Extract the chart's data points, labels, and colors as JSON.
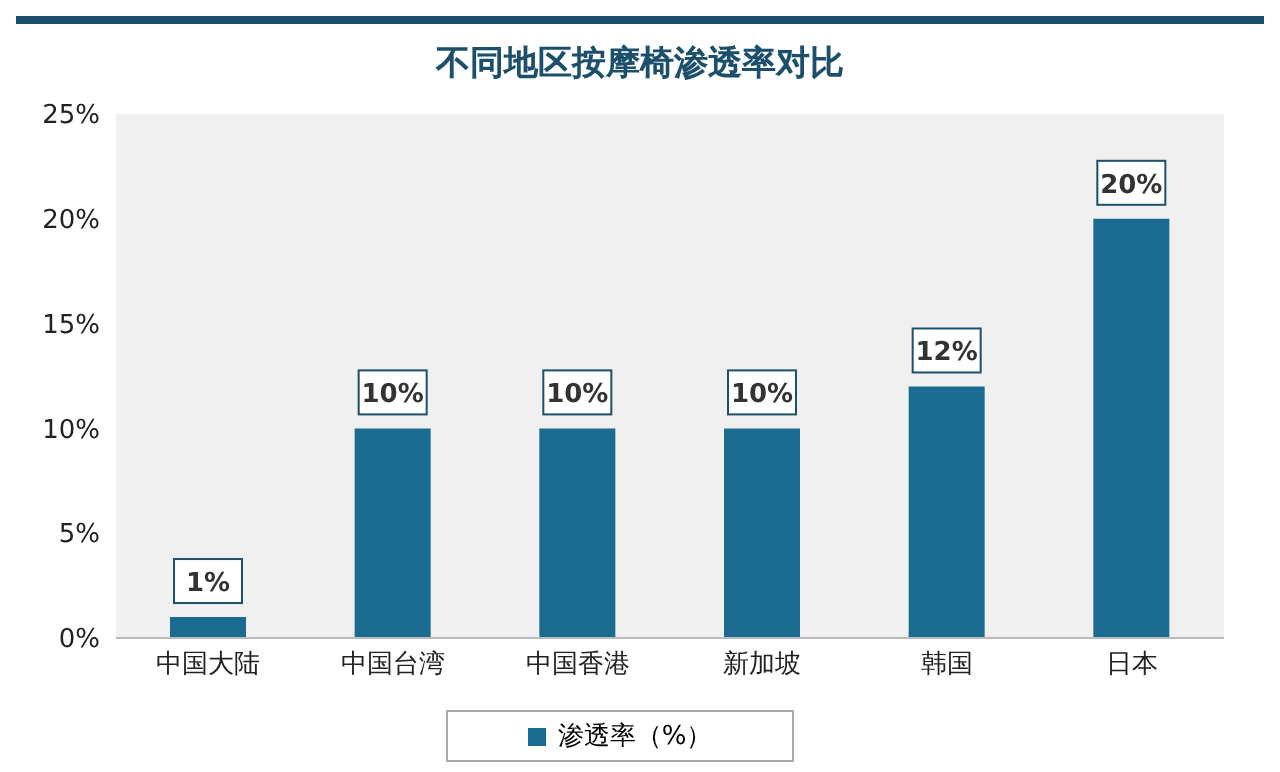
{
  "chart_data": {
    "type": "bar",
    "title": "不同地区按摩椅渗透率对比",
    "categories": [
      "中国大陆",
      "中国台湾",
      "中国香港",
      "新加坡",
      "韩国",
      "日本"
    ],
    "series": [
      {
        "name": "渗透率（%）",
        "color": "#1b6a8f",
        "values": [
          1,
          10,
          10,
          10,
          12,
          20
        ],
        "value_labels": [
          "1%",
          "10%",
          "10%",
          "10%",
          "12%",
          "20%"
        ]
      }
    ],
    "ylim": [
      0,
      25
    ],
    "yticks": [
      {
        "value": 0,
        "label": "0%"
      },
      {
        "value": 5,
        "label": "5%"
      },
      {
        "value": 10,
        "label": "10%"
      },
      {
        "value": 15,
        "label": "15%"
      },
      {
        "value": 20,
        "label": "20%"
      },
      {
        "value": 25,
        "label": "25%"
      }
    ],
    "grid": false,
    "legend": "bottom"
  }
}
